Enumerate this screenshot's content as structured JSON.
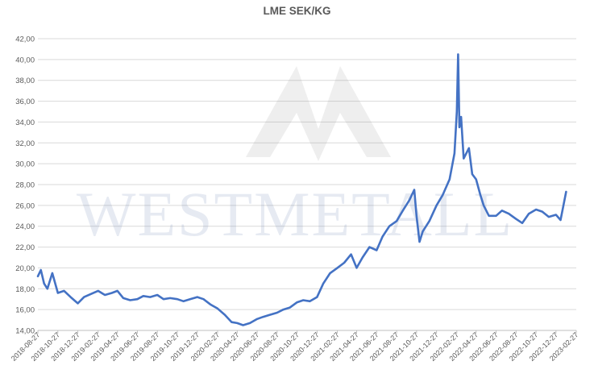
{
  "chart_data": {
    "type": "line",
    "title": "LME SEK/KG",
    "xlabel": "",
    "ylabel": "",
    "ylim": [
      14,
      42
    ],
    "ytick_labels": [
      "14,00",
      "16,00",
      "18,00",
      "20,00",
      "22,00",
      "24,00",
      "26,00",
      "28,00",
      "30,00",
      "32,00",
      "34,00",
      "36,00",
      "38,00",
      "40,00",
      "42,00"
    ],
    "xtick_labels": [
      "2018-08-27",
      "2018-10-27",
      "2018-12-27",
      "2019-02-27",
      "2019-04-27",
      "2019-06-27",
      "2019-08-27",
      "2019-10-27",
      "2019-12-27",
      "2020-02-27",
      "2020-04-27",
      "2020-06-27",
      "2020-08-27",
      "2020-10-27",
      "2020-12-27",
      "2021-02-27",
      "2021-04-27",
      "2021-06-27",
      "2021-08-27",
      "2021-10-27",
      "2021-12-27",
      "2022-02-27",
      "2022-04-27",
      "2022-06-27",
      "2022-08-27",
      "2022-10-27",
      "2022-12-27",
      "2023-02-27"
    ],
    "grid": true,
    "legend": "none",
    "line_color": "#4472C4",
    "watermark": "WESTMETALL",
    "series": [
      {
        "x": [
          "2018-08-27",
          "2018-09-05",
          "2018-09-15",
          "2018-09-25",
          "2018-10-10",
          "2018-10-27",
          "2018-11-15",
          "2018-12-05",
          "2018-12-27",
          "2019-01-15",
          "2019-02-05",
          "2019-02-27",
          "2019-03-20",
          "2019-04-10",
          "2019-04-27",
          "2019-05-15",
          "2019-06-05",
          "2019-06-27",
          "2019-07-15",
          "2019-08-05",
          "2019-08-27",
          "2019-09-15",
          "2019-10-05",
          "2019-10-27",
          "2019-11-15",
          "2019-12-05",
          "2019-12-27",
          "2020-01-15",
          "2020-02-05",
          "2020-02-27",
          "2020-03-20",
          "2020-04-10",
          "2020-04-27",
          "2020-05-15",
          "2020-06-05",
          "2020-06-27",
          "2020-07-15",
          "2020-08-05",
          "2020-08-27",
          "2020-09-15",
          "2020-10-05",
          "2020-10-27",
          "2020-11-15",
          "2020-12-05",
          "2020-12-27",
          "2021-01-15",
          "2021-02-05",
          "2021-02-27",
          "2021-03-20",
          "2021-04-10",
          "2021-04-27",
          "2021-05-15",
          "2021-06-05",
          "2021-06-27",
          "2021-07-15",
          "2021-08-05",
          "2021-08-27",
          "2021-09-15",
          "2021-10-05",
          "2021-10-20",
          "2021-10-27",
          "2021-11-05",
          "2021-11-15",
          "2021-12-05",
          "2021-12-27",
          "2022-01-15",
          "2022-02-05",
          "2022-02-20",
          "2022-02-27",
          "2022-03-03",
          "2022-03-07",
          "2022-03-12",
          "2022-03-20",
          "2022-04-05",
          "2022-04-15",
          "2022-04-27",
          "2022-05-10",
          "2022-05-20",
          "2022-06-05",
          "2022-06-27",
          "2022-07-15",
          "2022-08-05",
          "2022-08-27",
          "2022-09-15",
          "2022-10-05",
          "2022-10-27",
          "2022-11-15",
          "2022-12-05",
          "2022-12-27",
          "2023-01-10",
          "2023-01-20",
          "2023-01-27"
        ],
        "values": [
          19.2,
          19.8,
          18.5,
          18.0,
          19.5,
          17.6,
          17.8,
          17.2,
          16.6,
          17.2,
          17.5,
          17.8,
          17.4,
          17.6,
          17.8,
          17.1,
          16.9,
          17.0,
          17.3,
          17.2,
          17.4,
          17.0,
          17.1,
          17.0,
          16.8,
          17.0,
          17.2,
          17.0,
          16.5,
          16.1,
          15.5,
          14.8,
          14.7,
          14.5,
          14.7,
          15.1,
          15.3,
          15.5,
          15.7,
          16.0,
          16.2,
          16.7,
          16.9,
          16.8,
          17.2,
          18.5,
          19.5,
          20.0,
          20.5,
          21.3,
          20.0,
          21.0,
          22.0,
          21.7,
          23.0,
          24.0,
          24.5,
          25.5,
          26.5,
          27.5,
          25.0,
          22.5,
          23.5,
          24.5,
          26.0,
          27.0,
          28.5,
          31.0,
          35.0,
          40.5,
          33.5,
          34.5,
          30.5,
          31.5,
          29.0,
          28.5,
          27.0,
          26.0,
          25.0,
          25.0,
          25.5,
          25.2,
          24.7,
          24.3,
          25.2,
          25.6,
          25.4,
          24.9,
          25.1,
          24.6,
          26.2,
          27.3
        ]
      }
    ]
  }
}
